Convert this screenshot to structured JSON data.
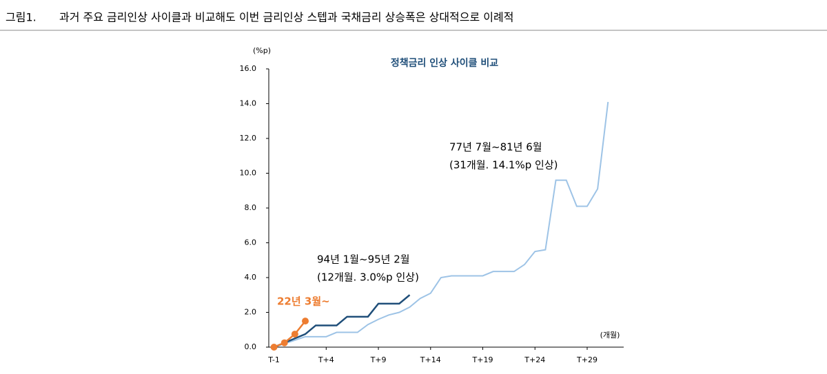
{
  "header": {
    "label": "그림1.",
    "title": "과거 주요 금리인상 사이클과 비교해도 이번 금리인상 스텝과 국채금리 상승폭은 상대적으로 이례적"
  },
  "chart_data": {
    "type": "line",
    "title": "정책금리 인상 사이클 비교",
    "y_unit": "(%p)",
    "x_unit": "(개월)",
    "xlim": [
      -1.5,
      32.5
    ],
    "xticks": [
      {
        "value": -1,
        "label": "T-1"
      },
      {
        "value": 4,
        "label": "T+4"
      },
      {
        "value": 9,
        "label": "T+9"
      },
      {
        "value": 14,
        "label": "T+14"
      },
      {
        "value": 19,
        "label": "T+19"
      },
      {
        "value": 24,
        "label": "T+24"
      },
      {
        "value": 29,
        "label": "T+29"
      }
    ],
    "ylim": [
      0,
      16
    ],
    "yticks": [
      {
        "value": 0,
        "label": "0.0"
      },
      {
        "value": 2,
        "label": "2.0"
      },
      {
        "value": 4,
        "label": "4.0"
      },
      {
        "value": 6,
        "label": "6.0"
      },
      {
        "value": 8,
        "label": "8.0"
      },
      {
        "value": 10,
        "label": "10.0"
      },
      {
        "value": 12,
        "label": "12.0"
      },
      {
        "value": 14,
        "label": "14.0"
      },
      {
        "value": 16,
        "label": "16.0"
      }
    ],
    "series": [
      {
        "color": "#9dc3e6",
        "markers": false,
        "annotation": [
          "77년 7월~81년 6월",
          "(31개월. 14.1%p 인상)"
        ],
        "x": [
          -1,
          0,
          1,
          2,
          3,
          4,
          5,
          6,
          7,
          8,
          9,
          10,
          11,
          12,
          13,
          14,
          15,
          16,
          17,
          18,
          19,
          20,
          21,
          22,
          23,
          24,
          25,
          26,
          27,
          28,
          29,
          30,
          31
        ],
        "values": [
          0,
          0.2,
          0.4,
          0.6,
          0.6,
          0.6,
          0.85,
          0.85,
          0.85,
          1.3,
          1.6,
          1.85,
          2.0,
          2.3,
          2.8,
          3.1,
          4.0,
          4.1,
          4.1,
          4.1,
          4.1,
          4.35,
          4.35,
          4.35,
          4.75,
          5.5,
          5.6,
          9.6,
          9.6,
          8.1,
          8.1,
          9.1,
          14.1
        ]
      },
      {
        "color": "#1f4e79",
        "markers": false,
        "annotation": [
          "94년 1월~95년 2월",
          "(12개월. 3.0%p 인상)"
        ],
        "x": [
          -1,
          0,
          1,
          2,
          3,
          4,
          5,
          6,
          7,
          8,
          9,
          10,
          11,
          12
        ],
        "values": [
          0,
          0.25,
          0.5,
          0.75,
          1.25,
          1.25,
          1.25,
          1.75,
          1.75,
          1.75,
          2.5,
          2.5,
          2.5,
          3.0
        ]
      },
      {
        "color": "#ed7d31",
        "markers": true,
        "annotation": [
          "22년 3월~"
        ],
        "x": [
          -1,
          0,
          1,
          2
        ],
        "values": [
          0,
          0.25,
          0.75,
          1.5
        ]
      }
    ]
  }
}
